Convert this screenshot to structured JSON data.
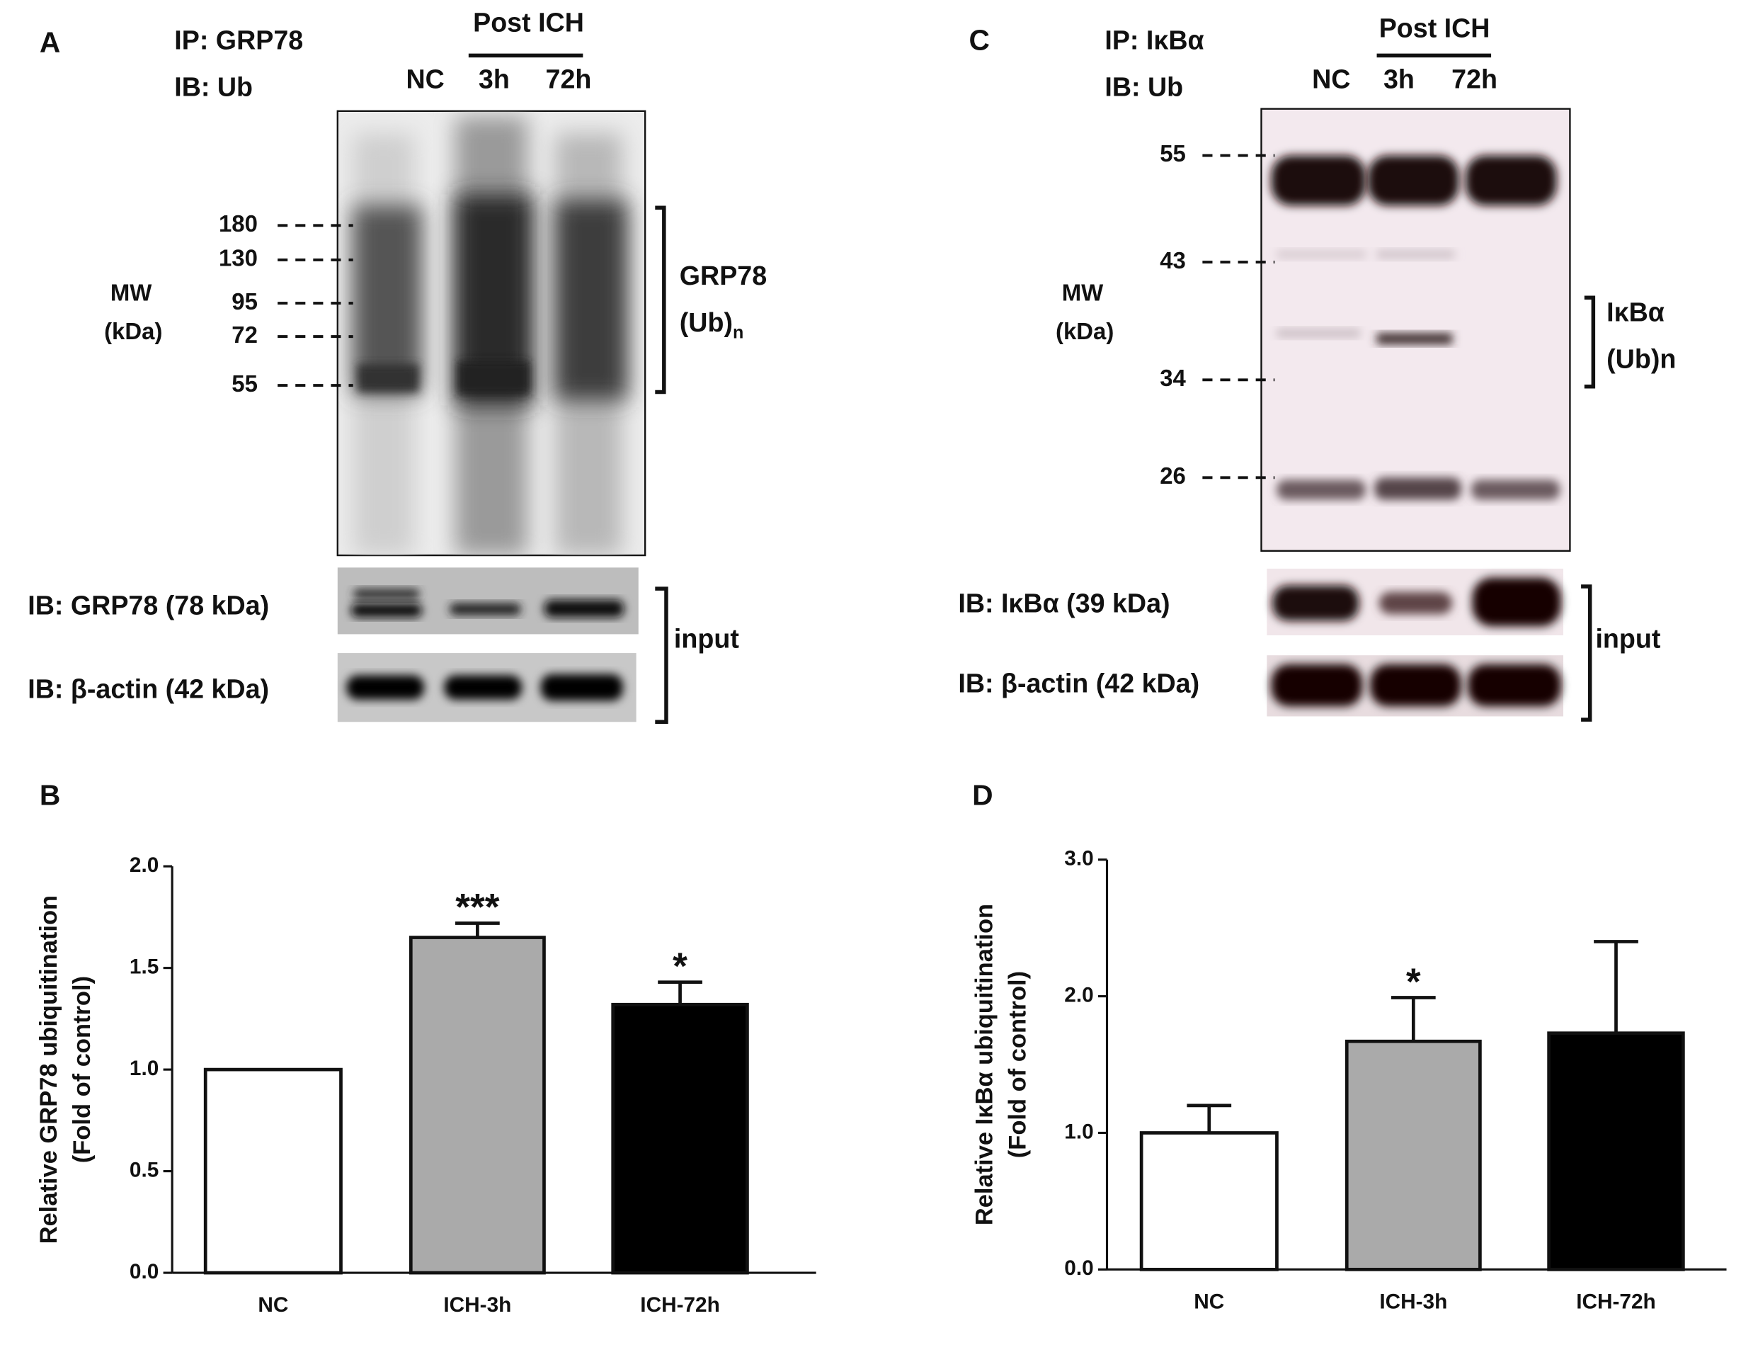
{
  "blots": [
    {
      "panel_label": "A",
      "ip": "IP: GRP78",
      "ib": "IB: Ub",
      "post": "Post ICH",
      "lanes": [
        "NC",
        "3h",
        "72h"
      ],
      "mw_title": [
        "MW",
        "(kDa)"
      ],
      "mw_markers": [
        "180",
        "130",
        "95",
        "72",
        "55"
      ],
      "bracket_label": [
        "GRP78",
        "(Ub)",
        "n"
      ],
      "input_rows": [
        "IB: GRP78 (78 kDa)",
        "IB: β-actin (42 kDa)"
      ],
      "input": "input"
    },
    {
      "panel_label": "C",
      "ip": "IP: IκBα",
      "ib": "IB: Ub",
      "post": "Post ICH",
      "lanes": [
        "NC",
        "3h",
        "72h"
      ],
      "mw_title": [
        "MW",
        "(kDa)"
      ],
      "mw_markers": [
        "55",
        "43",
        "34",
        "26"
      ],
      "bracket_label": [
        "IκBα",
        "(Ub)n"
      ],
      "input_rows": [
        "IB: IκBα (39 kDa)",
        "IB: β-actin (42 kDa)"
      ],
      "input": "input"
    }
  ],
  "chart_data": [
    {
      "type": "bar",
      "panel_label": "B",
      "ylabel": [
        "Relative GRP78 ubiquitination",
        "(Fold of control)"
      ],
      "categories": [
        "NC",
        "ICH-3h",
        "ICH-72h"
      ],
      "values": [
        1.0,
        1.65,
        1.32
      ],
      "errors": [
        null,
        0.07,
        0.11
      ],
      "colors": [
        "#ffffff",
        "#aaaaaa",
        "#000000"
      ],
      "annotations": [
        null,
        "***",
        "*"
      ],
      "ylim": [
        0,
        2
      ],
      "yticks": [
        {
          "value": 0,
          "label": "0.0"
        },
        {
          "value": 0.5,
          "label": "0.5"
        },
        {
          "value": 1,
          "label": "1.0"
        },
        {
          "value": 1.5,
          "label": "1.5"
        },
        {
          "value": 2,
          "label": "2.0"
        }
      ]
    },
    {
      "type": "bar",
      "panel_label": "D",
      "ylabel": [
        "Relative IκBα ubiquitination",
        "(Fold of control)"
      ],
      "categories": [
        "NC",
        "ICH-3h",
        "ICH-72h"
      ],
      "values": [
        1.0,
        1.67,
        1.73
      ],
      "errors": [
        0.2,
        0.32,
        0.67
      ],
      "colors": [
        "#ffffff",
        "#aaaaaa",
        "#000000"
      ],
      "annotations": [
        null,
        "*",
        null
      ],
      "ylim": [
        0,
        3
      ],
      "yticks": [
        {
          "value": 0,
          "label": "0.0"
        },
        {
          "value": 1,
          "label": "1.0"
        },
        {
          "value": 2,
          "label": "2.0"
        },
        {
          "value": 3,
          "label": "3.0"
        }
      ]
    }
  ]
}
